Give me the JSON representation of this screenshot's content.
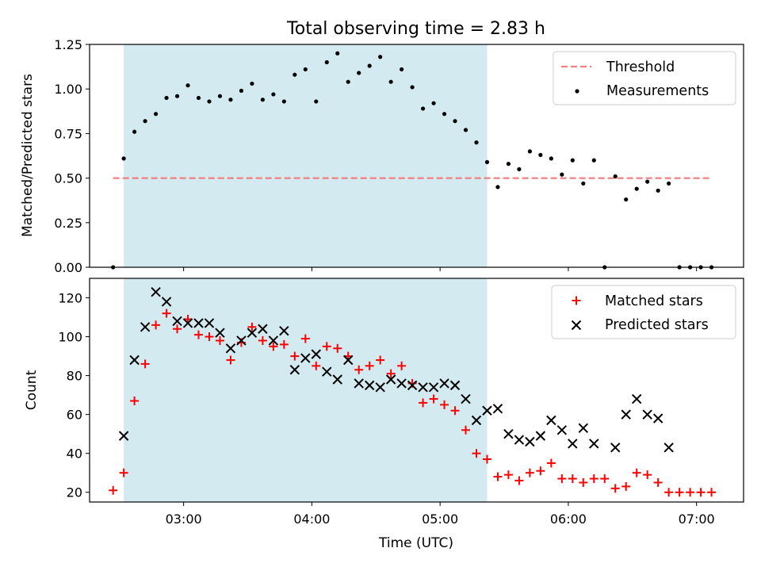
{
  "colors": {
    "shade": "#a8d5e2",
    "threshold": "#f08080",
    "measurement": "#000000",
    "matched": "#ff0000",
    "predicted": "#000000"
  },
  "chart_data": [
    {
      "type": "scatter",
      "title": "Total observing time = 2.83 h",
      "xlabel": "",
      "ylabel": "Matched/Predicted stars",
      "x_unit": "hours UTC",
      "xlim": [
        "02:16",
        "07:22"
      ],
      "ylim": [
        0,
        1.25
      ],
      "yticks": [
        0.0,
        0.25,
        0.5,
        0.75,
        1.0,
        1.25
      ],
      "ytick_labels": [
        "0.00",
        "0.25",
        "0.50",
        "0.75",
        "1.00",
        "1.25"
      ],
      "shaded_interval": [
        "02:32",
        "05:22"
      ],
      "threshold": {
        "name": "Threshold",
        "value": 0.5,
        "x_range": [
          "02:27",
          "07:07"
        ],
        "style": "dashed"
      },
      "legend": {
        "placement": "top-right",
        "entries": [
          "Threshold",
          "Measurements"
        ]
      },
      "series": [
        {
          "name": "Measurements",
          "marker": "dot",
          "x": [
            "02:27",
            "02:32",
            "02:37",
            "02:42",
            "02:47",
            "02:52",
            "02:57",
            "03:02",
            "03:07",
            "03:12",
            "03:17",
            "03:22",
            "03:27",
            "03:32",
            "03:37",
            "03:42",
            "03:47",
            "03:52",
            "03:57",
            "04:02",
            "04:07",
            "04:12",
            "04:17",
            "04:22",
            "04:27",
            "04:32",
            "04:37",
            "04:42",
            "04:47",
            "04:52",
            "04:57",
            "05:02",
            "05:07",
            "05:12",
            "05:17",
            "05:22",
            "05:27",
            "05:32",
            "05:37",
            "05:42",
            "05:47",
            "05:52",
            "05:57",
            "06:02",
            "06:07",
            "06:12",
            "06:17",
            "06:22",
            "06:27",
            "06:32",
            "06:37",
            "06:42",
            "06:47",
            "06:52",
            "06:57",
            "07:02",
            "07:07"
          ],
          "y": [
            0.0,
            0.61,
            0.76,
            0.82,
            0.86,
            0.95,
            0.96,
            1.02,
            0.95,
            0.93,
            0.96,
            0.94,
            0.99,
            1.03,
            0.94,
            0.97,
            0.93,
            1.08,
            1.11,
            0.93,
            1.15,
            1.2,
            1.04,
            1.09,
            1.13,
            1.18,
            1.04,
            1.11,
            1.01,
            0.89,
            0.92,
            0.86,
            0.82,
            0.77,
            0.7,
            0.59,
            0.45,
            0.58,
            0.55,
            0.65,
            0.63,
            0.61,
            0.52,
            0.6,
            0.47,
            0.6,
            0.0,
            0.51,
            0.38,
            0.44,
            0.48,
            0.43,
            0.47,
            0.0,
            0.0,
            0.0,
            0.0
          ]
        }
      ]
    },
    {
      "type": "scatter",
      "xlabel": "Time (UTC)",
      "ylabel": "Count",
      "x_unit": "hours UTC",
      "xlim": [
        "02:16",
        "07:22"
      ],
      "ylim": [
        15,
        130
      ],
      "xticks": [
        "03:00",
        "04:00",
        "05:00",
        "06:00",
        "07:00"
      ],
      "yticks": [
        20,
        40,
        60,
        80,
        100,
        120
      ],
      "ytick_labels": [
        "20",
        "40",
        "60",
        "80",
        "100",
        "120"
      ],
      "shaded_interval": [
        "02:32",
        "05:22"
      ],
      "legend": {
        "placement": "top-right",
        "entries": [
          "Matched stars",
          "Predicted stars"
        ]
      },
      "series": [
        {
          "name": "Matched stars",
          "marker": "plus",
          "x": [
            "02:27",
            "02:32",
            "02:37",
            "02:42",
            "02:47",
            "02:52",
            "02:57",
            "03:02",
            "03:07",
            "03:12",
            "03:17",
            "03:22",
            "03:27",
            "03:32",
            "03:37",
            "03:42",
            "03:47",
            "03:52",
            "03:57",
            "04:02",
            "04:07",
            "04:12",
            "04:17",
            "04:22",
            "04:27",
            "04:32",
            "04:37",
            "04:42",
            "04:47",
            "04:52",
            "04:57",
            "05:02",
            "05:07",
            "05:12",
            "05:17",
            "05:22",
            "05:27",
            "05:32",
            "05:37",
            "05:42",
            "05:47",
            "05:52",
            "05:57",
            "06:02",
            "06:07",
            "06:12",
            "06:17",
            "06:22",
            "06:27",
            "06:32",
            "06:37",
            "06:42",
            "06:47",
            "06:52",
            "06:57",
            "07:02",
            "07:07"
          ],
          "y": [
            21,
            30,
            67,
            86,
            106,
            112,
            104,
            109,
            101,
            100,
            98,
            88,
            97,
            105,
            98,
            95,
            96,
            90,
            99,
            85,
            95,
            94,
            90,
            83,
            85,
            88,
            81,
            85,
            76,
            66,
            68,
            65,
            62,
            52,
            40,
            37,
            28,
            29,
            26,
            30,
            31,
            35,
            27,
            27,
            25,
            27,
            27,
            22,
            23,
            30,
            29,
            25,
            20,
            20,
            20,
            20,
            20
          ]
        },
        {
          "name": "Predicted stars",
          "marker": "x",
          "x": [
            "02:32",
            "02:37",
            "02:42",
            "02:47",
            "02:52",
            "02:57",
            "03:02",
            "03:07",
            "03:12",
            "03:17",
            "03:22",
            "03:27",
            "03:32",
            "03:37",
            "03:42",
            "03:47",
            "03:52",
            "03:57",
            "04:02",
            "04:07",
            "04:12",
            "04:17",
            "04:22",
            "04:27",
            "04:32",
            "04:37",
            "04:42",
            "04:47",
            "04:52",
            "04:57",
            "05:02",
            "05:07",
            "05:12",
            "05:17",
            "05:22",
            "05:27",
            "05:32",
            "05:37",
            "05:42",
            "05:47",
            "05:52",
            "05:57",
            "06:02",
            "06:07",
            "06:12",
            "06:22",
            "06:27",
            "06:32",
            "06:37",
            "06:42",
            "06:47"
          ],
          "y": [
            49,
            88,
            105,
            123,
            118,
            108,
            107,
            107,
            107,
            102,
            94,
            98,
            102,
            104,
            98,
            103,
            83,
            89,
            91,
            82,
            78,
            88,
            76,
            75,
            74,
            78,
            76,
            75,
            74,
            74,
            76,
            75,
            68,
            57,
            62,
            63,
            50,
            47,
            46,
            49,
            57,
            52,
            45,
            53,
            45,
            43,
            60,
            68,
            60,
            58,
            43
          ]
        }
      ]
    }
  ]
}
